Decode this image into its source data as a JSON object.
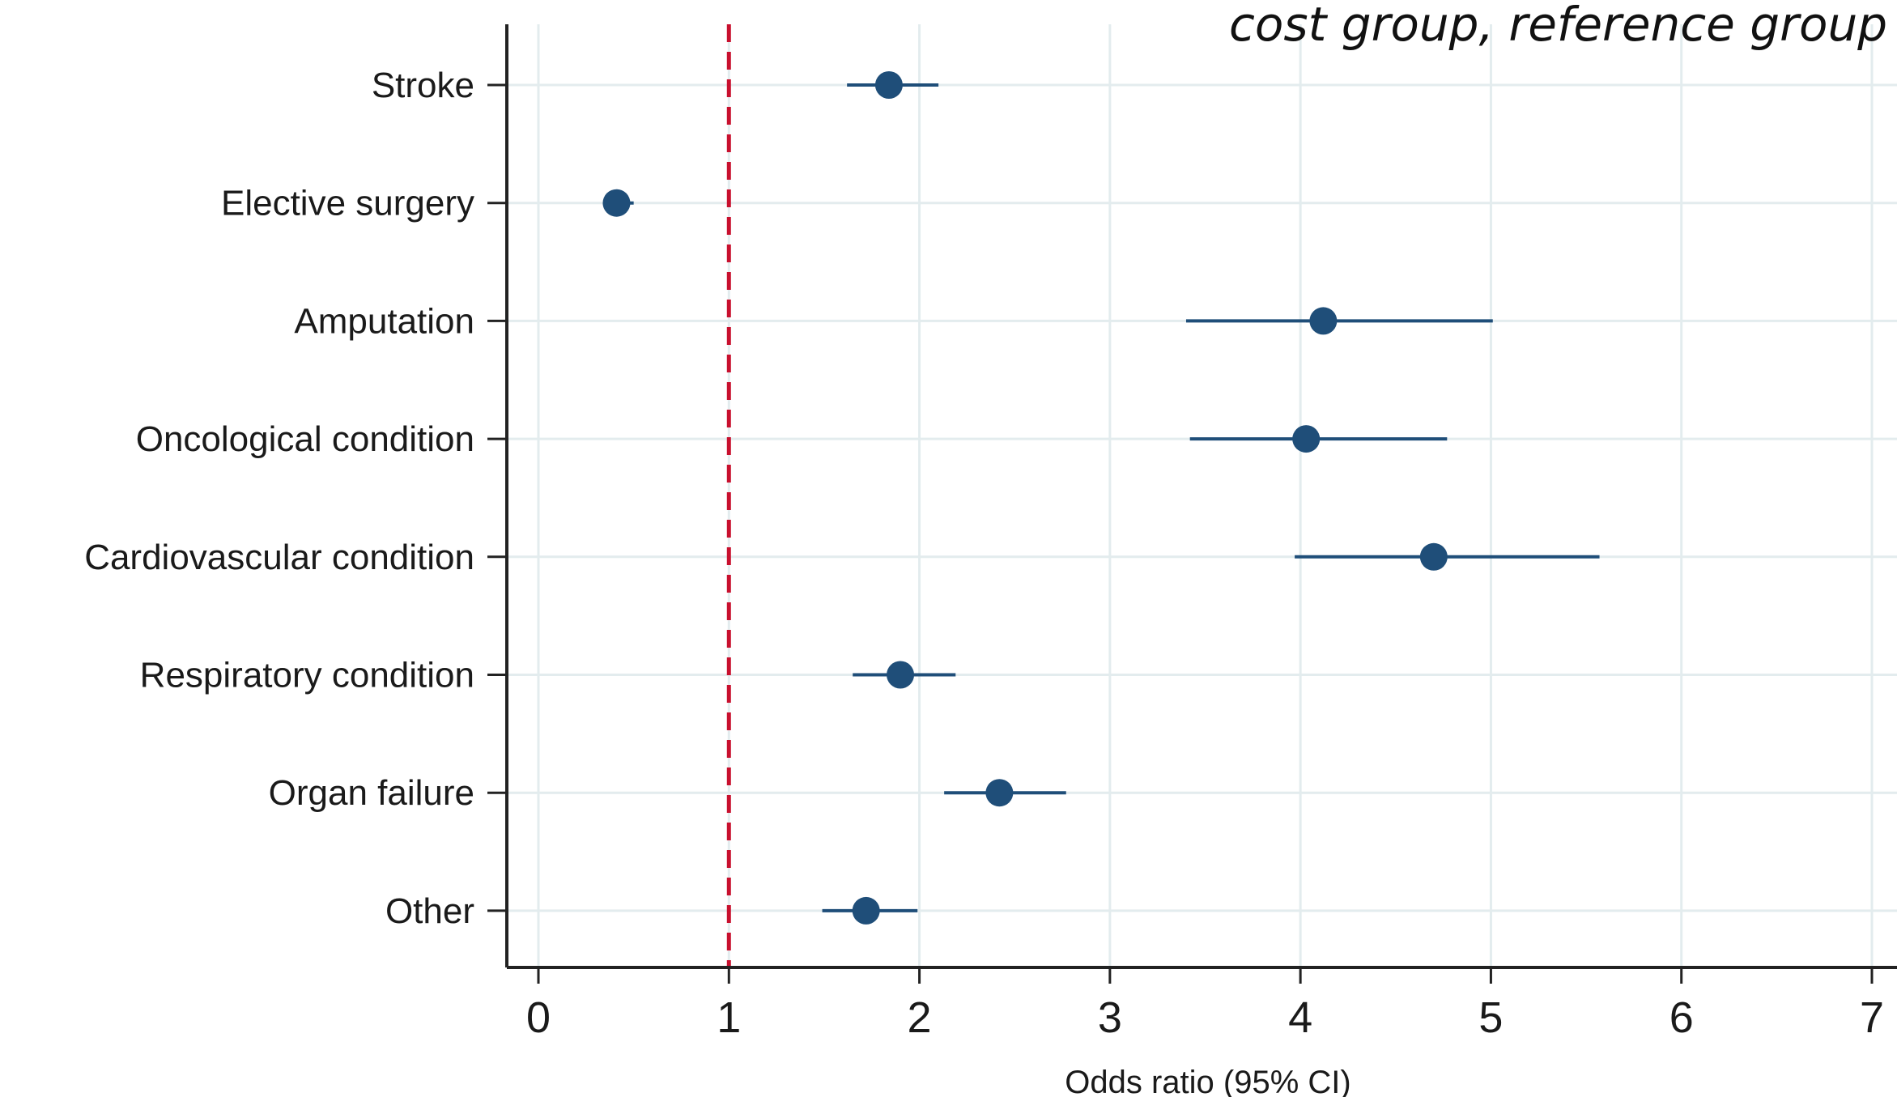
{
  "chart_data": {
    "type": "scatter",
    "subtype": "forest-plot",
    "title": "",
    "corner_note": "cost group, reference group",
    "xlabel": "Odds ratio (95% CI)",
    "ylabel": "",
    "xlim": [
      0,
      7
    ],
    "x_ticks": [
      "0",
      "1",
      "2",
      "3",
      "4",
      "5",
      "6",
      "7"
    ],
    "reference_line": 1,
    "grid": true,
    "legend": "none",
    "categories": [
      "Stroke",
      "Elective surgery",
      "Amputation",
      "Oncological condition",
      "Cardiovascular condition",
      "Respiratory condition",
      "Organ failure",
      "Other"
    ],
    "series": [
      {
        "estimate": [
          1.84,
          0.41,
          4.12,
          4.03,
          4.7,
          1.9,
          2.42,
          1.72
        ],
        "ci_low": [
          1.62,
          0.35,
          3.4,
          3.42,
          3.97,
          1.65,
          2.13,
          1.49
        ],
        "ci_high": [
          2.1,
          0.5,
          5.01,
          4.77,
          5.57,
          2.19,
          2.77,
          1.99
        ]
      }
    ],
    "colors": {
      "marker": "#1f4e79",
      "reference_line": "#c8102e",
      "grid": "#e3ecee",
      "axis": "#222222"
    }
  }
}
